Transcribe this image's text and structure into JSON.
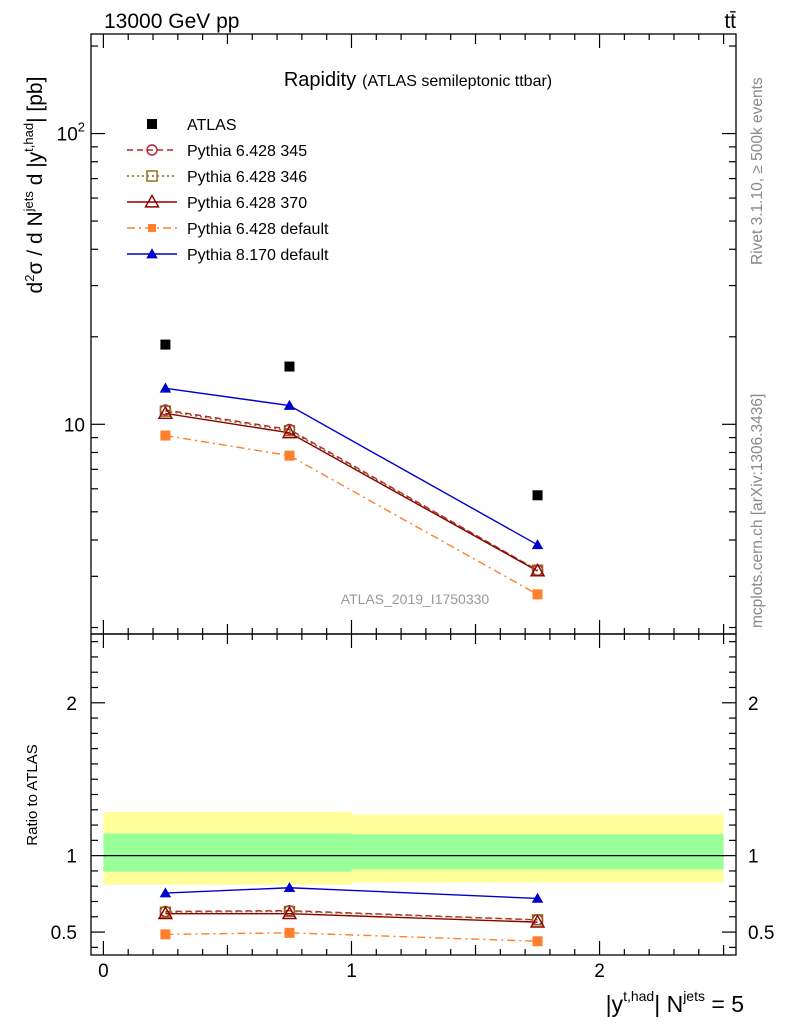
{
  "header": {
    "left": "13000 GeV pp",
    "right": "tt̄"
  },
  "side_texts": {
    "rivet": "Rivet 3.1.10, ≥ 500k events",
    "mcplots": "mcplots.cern.ch [arXiv:1306.3436]"
  },
  "chart_data": [
    {
      "type": "scatter",
      "title": "Rapidity",
      "subtitle": "(ATLAS semileptonic ttbar)",
      "ylabel": "d²σ / d Njets d |yt,had| [pb]",
      "y_scale": "log",
      "ylim": [
        1.9,
        220
      ],
      "xlim": [
        -0.05,
        2.55
      ],
      "y_ticks": [
        {
          "value": 10,
          "label": "10"
        },
        {
          "value": 100,
          "label": "10²"
        }
      ],
      "watermark": "ATLAS_2019_I1750330",
      "legend_position": "top-left",
      "x": [
        0.25,
        0.75,
        1.75
      ],
      "series": [
        {
          "name": "ATLAS",
          "values": [
            18.8,
            15.8,
            5.7
          ],
          "color": "#000000",
          "marker": "square",
          "line": "none"
        },
        {
          "name": "Pythia 6.428 345",
          "values": [
            11.2,
            9.6,
            3.15
          ],
          "color": "#b22234",
          "marker": "circle-open",
          "line": "dashed"
        },
        {
          "name": "Pythia 6.428 346",
          "values": [
            11.1,
            9.5,
            3.15
          ],
          "color": "#8b6914",
          "marker": "square-open",
          "line": "dotted"
        },
        {
          "name": "Pythia 6.428 370",
          "values": [
            10.9,
            9.35,
            3.13
          ],
          "color": "#8b0000",
          "marker": "triangle-open",
          "line": "solid"
        },
        {
          "name": "Pythia 6.428 default",
          "values": [
            9.15,
            7.8,
            2.6
          ],
          "color": "#ff7f2a",
          "marker": "square",
          "line": "dashdot"
        },
        {
          "name": "Pythia 8.170 default",
          "values": [
            13.3,
            11.6,
            3.85
          ],
          "color": "#0000cc",
          "marker": "triangle",
          "line": "solid"
        }
      ]
    },
    {
      "type": "scatter",
      "ylabel": "Ratio to ATLAS",
      "xlabel": "|yt,had| Njets = 5",
      "ylim": [
        0.35,
        2.45
      ],
      "xlim": [
        -0.05,
        2.55
      ],
      "x_ticks": [
        {
          "value": 0,
          "label": "0"
        },
        {
          "value": 1,
          "label": "1"
        },
        {
          "value": 2,
          "label": "2"
        }
      ],
      "y_ticks": [
        {
          "value": 0.5,
          "label": "0.5"
        },
        {
          "value": 1,
          "label": "1"
        },
        {
          "value": 2,
          "label": "2"
        }
      ],
      "bands": [
        {
          "x0": 0,
          "x1": 1,
          "lo": 0.81,
          "hi": 1.285,
          "color": "#ffff99"
        },
        {
          "x0": 1,
          "x1": 2.5,
          "lo": 0.825,
          "hi": 1.27,
          "color": "#ffff99"
        },
        {
          "x0": 0,
          "x1": 1,
          "lo": 0.895,
          "hi": 1.145,
          "color": "#99ff99"
        },
        {
          "x0": 1,
          "x1": 2.5,
          "lo": 0.91,
          "hi": 1.14,
          "color": "#99ff99"
        }
      ],
      "x": [
        0.25,
        0.75,
        1.75
      ],
      "series": [
        {
          "name": "Pythia 6.428 345",
          "values": [
            0.635,
            0.64,
            0.58
          ],
          "color": "#b22234",
          "marker": "circle-open",
          "line": "dashed"
        },
        {
          "name": "Pythia 6.428 346",
          "values": [
            0.63,
            0.635,
            0.58
          ],
          "color": "#8b6914",
          "marker": "square-open",
          "line": "dotted"
        },
        {
          "name": "Pythia 6.428 370",
          "values": [
            0.62,
            0.62,
            0.565
          ],
          "color": "#8b0000",
          "marker": "triangle-open",
          "line": "solid"
        },
        {
          "name": "Pythia 6.428 default",
          "values": [
            0.485,
            0.495,
            0.44
          ],
          "color": "#ff7f2a",
          "marker": "square",
          "line": "dashdot"
        },
        {
          "name": "Pythia 8.170 default",
          "values": [
            0.755,
            0.79,
            0.72
          ],
          "color": "#0000cc",
          "marker": "triangle",
          "line": "solid"
        }
      ]
    }
  ]
}
